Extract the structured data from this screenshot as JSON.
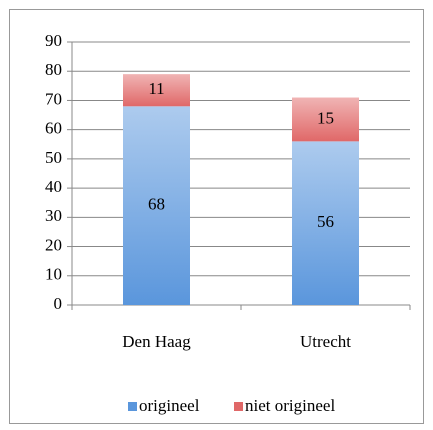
{
  "chart_data": {
    "type": "stacked_bar",
    "categories": [
      "Den Haag",
      "Utrecht"
    ],
    "series": [
      {
        "name": "origineel",
        "color": "#5a96dc",
        "values": [
          68,
          56
        ]
      },
      {
        "name": "niet origineel",
        "color": "#e06868",
        "values": [
          11,
          15
        ]
      }
    ],
    "ylim": [
      0,
      90
    ],
    "yticks": [
      0,
      10,
      20,
      30,
      40,
      50,
      60,
      70,
      80,
      90
    ],
    "grid": true,
    "legend": "bottom"
  }
}
